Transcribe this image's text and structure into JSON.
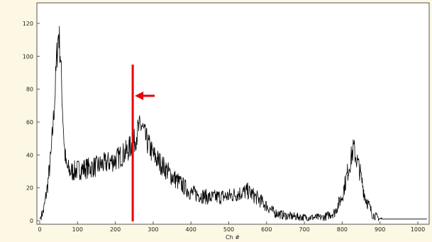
{
  "chart_data": {
    "type": "line",
    "title": "",
    "xlabel": "Ch #",
    "ylabel": "",
    "xlim": [
      0,
      1024
    ],
    "ylim": [
      0,
      130
    ],
    "xticks": [
      0,
      100,
      200,
      300,
      400,
      500,
      600,
      700,
      800,
      900,
      1000
    ],
    "yticks": [
      0,
      20,
      40,
      60,
      80,
      100,
      120
    ],
    "grid": false,
    "line_color": "#000000",
    "series": [
      {
        "name": "",
        "x": [
          0,
          10,
          20,
          30,
          40,
          45,
          50,
          55,
          60,
          65,
          70,
          80,
          90,
          100,
          150,
          200,
          230,
          250,
          260,
          270,
          280,
          300,
          350,
          400,
          450,
          500,
          550,
          580,
          620,
          650,
          700,
          750,
          780,
          800,
          815,
          830,
          845,
          860,
          880,
          900,
          950,
          1000,
          1024
        ],
        "y": [
          1,
          6,
          20,
          40,
          75,
          100,
          115,
          100,
          70,
          45,
          33,
          30,
          30,
          31,
          33,
          37,
          42,
          48,
          55,
          58,
          50,
          40,
          27,
          17,
          14,
          15,
          18,
          13,
          5,
          3,
          2,
          2,
          5,
          15,
          30,
          44,
          32,
          15,
          4,
          1,
          1,
          1,
          1
        ]
      }
    ]
  },
  "annotations": {
    "marker_x": 246,
    "marker_top_y": 95,
    "arrow_color": "#e8000b"
  }
}
